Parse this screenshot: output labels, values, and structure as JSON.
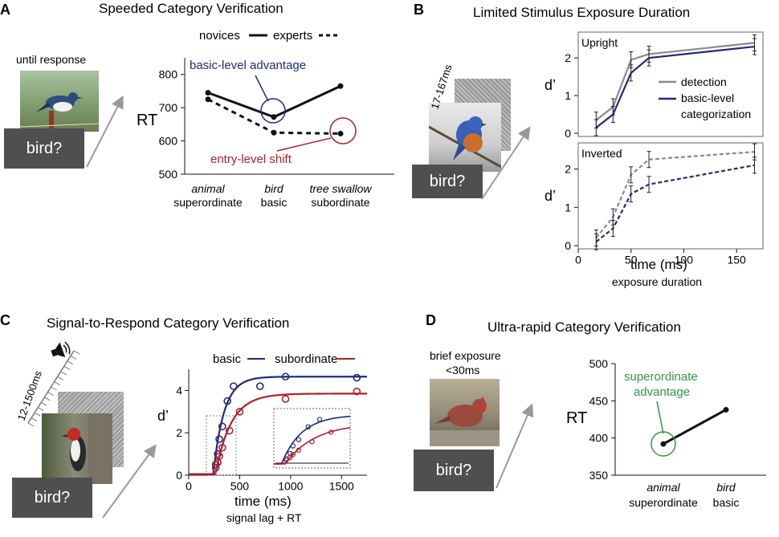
{
  "panels": {
    "A": {
      "letter": "A",
      "title": "Speeded Category Verification",
      "stimulus_label": "until response",
      "prompt": "bird?"
    },
    "B": {
      "letter": "B",
      "title": "Limited Stimulus Exposure Duration",
      "stimulus_label": "17-167ms",
      "prompt": "bird?"
    },
    "C": {
      "letter": "C",
      "title": "Signal-to-Respond Category Verification",
      "stimulus_label": "12-1500ms",
      "prompt": "bird?"
    },
    "D": {
      "letter": "D",
      "title": "Ultra-rapid Category Verification",
      "stimulus_label_1": "brief exposure",
      "stimulus_label_2": "<30ms",
      "prompt": "bird?"
    }
  },
  "colors": {
    "black": "#111111",
    "blue": "#1f2a7a",
    "gray": "#8a8a8a",
    "red": "#b21f2a",
    "green": "#2e9a45",
    "prompt_bg": "#4f4f4f"
  },
  "chart_data": [
    {
      "id": "A",
      "type": "line",
      "title": "Speeded Category Verification",
      "ylabel": "RT",
      "ylim": [
        500,
        850
      ],
      "yticks": [
        500,
        600,
        700,
        800
      ],
      "categories": [
        {
          "line1": "animal",
          "line2": "superordinate"
        },
        {
          "line1": "bird",
          "line2": "basic"
        },
        {
          "line1": "tree swallow",
          "line2": "subordinate"
        }
      ],
      "series": [
        {
          "name": "novices",
          "style": "solid",
          "values": [
            745,
            672,
            765
          ]
        },
        {
          "name": "experts",
          "style": "dashed",
          "values": [
            725,
            625,
            622
          ]
        }
      ],
      "annotations": {
        "basic": "basic-level advantage",
        "entry": "entry-level shift"
      }
    },
    {
      "id": "B",
      "type": "line",
      "xlabel": "time (ms)",
      "xlabel2": "exposure duration",
      "xlim": [
        0,
        175
      ],
      "xticks": [
        0,
        50,
        100,
        150
      ],
      "ylabel": "d’",
      "subplots": [
        {
          "label": "Upright",
          "ylim": [
            0,
            2.6
          ],
          "yticks": [
            0,
            1,
            2
          ],
          "series": [
            {
              "name": "detection",
              "style": "solid",
              "color": "gray",
              "x": [
                17,
                33,
                50,
                67,
                167
              ],
              "y": [
                0.35,
                0.7,
                1.95,
                2.1,
                2.4
              ]
            },
            {
              "name": "basic-level categorization",
              "style": "solid",
              "color": "blue",
              "x": [
                17,
                33,
                50,
                67,
                167
              ],
              "y": [
                0.15,
                0.5,
                1.6,
                2.0,
                2.3
              ]
            }
          ],
          "legend": [
            "detection",
            "basic-level",
            "categorization"
          ]
        },
        {
          "label": "Inverted",
          "ylim": [
            0,
            2.6
          ],
          "yticks": [
            0,
            1,
            2
          ],
          "series": [
            {
              "name": "detection",
              "style": "dashed",
              "color": "gray",
              "x": [
                17,
                33,
                50,
                67,
                167
              ],
              "y": [
                0.2,
                0.75,
                1.85,
                2.25,
                2.45
              ]
            },
            {
              "name": "basic-level categorization",
              "style": "dashed",
              "color": "blue",
              "x": [
                17,
                33,
                50,
                67,
                167
              ],
              "y": [
                0.1,
                0.45,
                1.35,
                1.6,
                2.1
              ]
            }
          ]
        }
      ]
    },
    {
      "id": "C",
      "type": "line",
      "xlabel": "time (ms)",
      "xlabel2": "signal lag + RT",
      "xlim": [
        0,
        1750
      ],
      "xticks": [
        0,
        500,
        1000,
        1500
      ],
      "ylabel": "d’",
      "ylim": [
        0,
        5
      ],
      "yticks": [
        0,
        2,
        4
      ],
      "series": [
        {
          "name": "basic",
          "color": "blue",
          "points_x": [
            265,
            285,
            300,
            330,
            380,
            440,
            700,
            950,
            1650
          ],
          "points_y": [
            0.5,
            1.0,
            1.7,
            2.3,
            3.5,
            4.2,
            4.2,
            4.65,
            4.6
          ],
          "asymptote": 4.65,
          "rate": 0.0095,
          "intercept": 240
        },
        {
          "name": "subordinate",
          "color": "red",
          "points_x": [
            265,
            285,
            300,
            330,
            400,
            500,
            950,
            1650
          ],
          "points_y": [
            0.35,
            0.6,
            0.9,
            1.3,
            2.1,
            3.0,
            3.6,
            3.95
          ],
          "asymptote": 3.85,
          "rate": 0.0065,
          "intercept": 260
        }
      ]
    },
    {
      "id": "D",
      "type": "line",
      "ylabel": "RT",
      "ylim": [
        350,
        500
      ],
      "yticks": [
        350,
        400,
        450,
        500
      ],
      "categories": [
        {
          "line1": "animal",
          "line2": "superordinate"
        },
        {
          "line1": "bird",
          "line2": "basic"
        }
      ],
      "series": [
        {
          "name": "RT",
          "values": [
            392,
            438
          ]
        }
      ],
      "annotation_1": "superordinate",
      "annotation_2": "advantage"
    }
  ]
}
